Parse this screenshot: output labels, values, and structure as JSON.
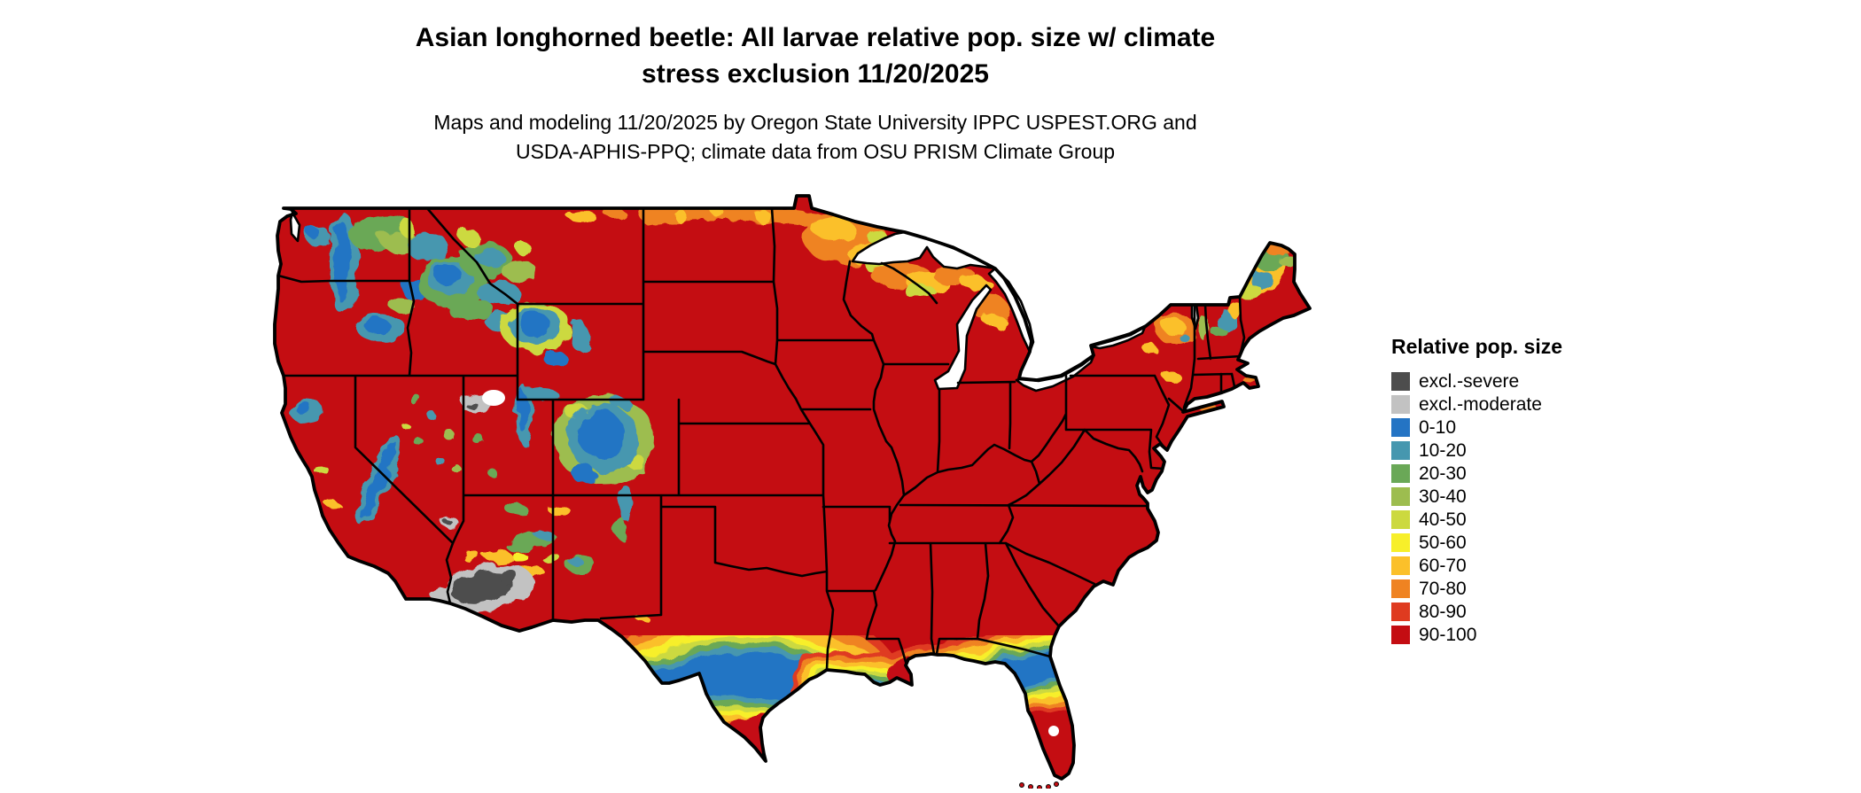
{
  "title": {
    "line1": "Asian longhorned beetle: All larvae relative pop. size w/ climate",
    "line2": "stress exclusion 11/20/2025"
  },
  "subtitle": {
    "line1": "Maps and modeling 11/20/2025 by Oregon State University IPPC USPEST.ORG and",
    "line2": "USDA-APHIS-PPQ; climate data from OSU PRISM Climate Group"
  },
  "legend": {
    "title": "Relative pop. size",
    "items": [
      {
        "label": "excl.-severe",
        "color": "#4d4d4d"
      },
      {
        "label": "excl.-moderate",
        "color": "#c2c2c2"
      },
      {
        "label": "0-10",
        "color": "#2474c4"
      },
      {
        "label": "10-20",
        "color": "#4697af"
      },
      {
        "label": "20-30",
        "color": "#6aa857"
      },
      {
        "label": "30-40",
        "color": "#9dbd4f"
      },
      {
        "label": "40-50",
        "color": "#ccd93f"
      },
      {
        "label": "50-60",
        "color": "#f7ef2a"
      },
      {
        "label": "60-70",
        "color": "#fbc02a"
      },
      {
        "label": "70-80",
        "color": "#ef8322"
      },
      {
        "label": "80-90",
        "color": "#df3b20"
      },
      {
        "label": "90-100",
        "color": "#c40d12"
      }
    ]
  },
  "map": {
    "base_color": "#c40d12",
    "water_color": "#ffffff",
    "border_color": "#000000"
  }
}
